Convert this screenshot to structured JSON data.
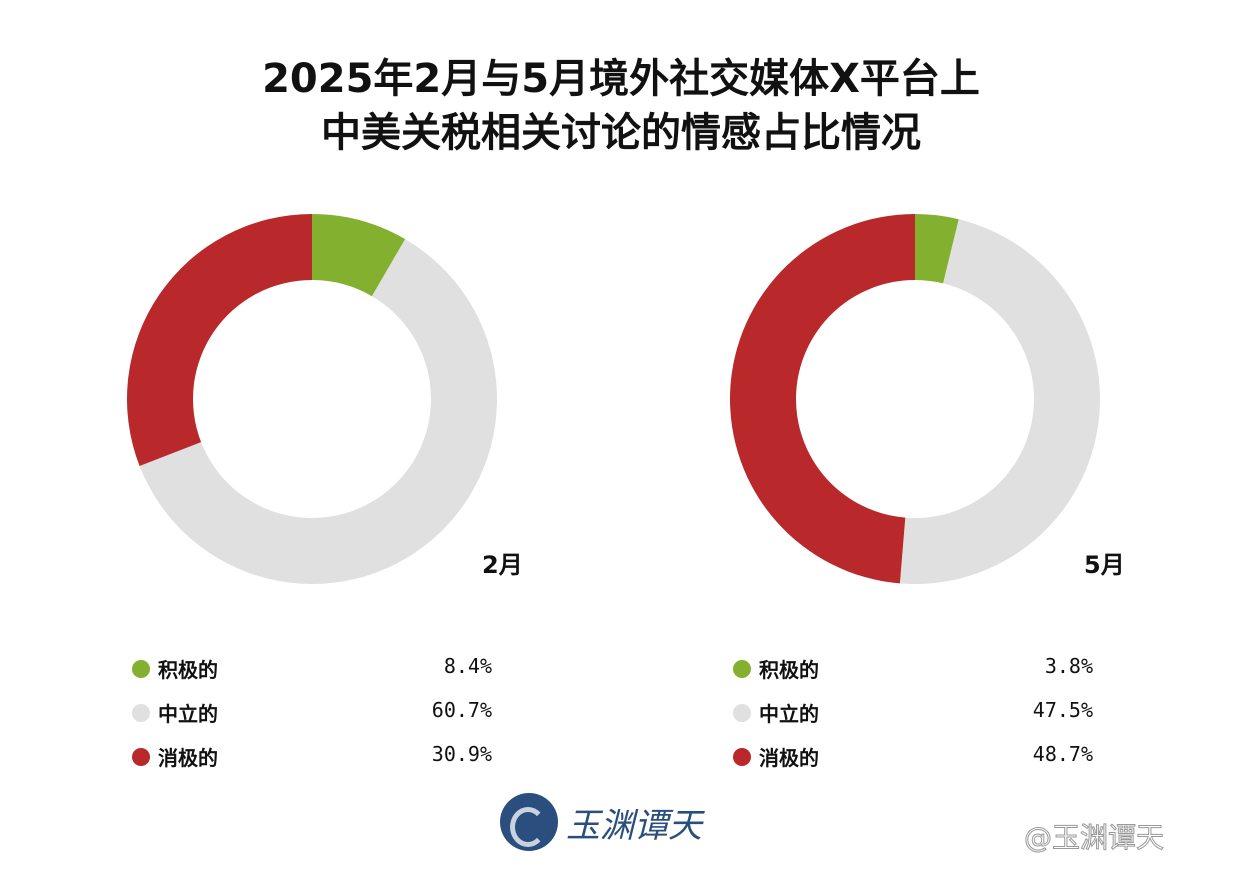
{
  "chart_data": [
    {
      "type": "pie",
      "donut": true,
      "title": "2025年2月与5月境外社交媒体X平台上中美关税相关讨论的情感占比情况",
      "label": "2月",
      "categories": [
        "积极的",
        "中立的",
        "消极的"
      ],
      "values": [
        8.4,
        60.7,
        30.9
      ],
      "value_labels": [
        "8.4%",
        "60.7%",
        "30.9%"
      ],
      "colors": [
        "#84b02f",
        "#e0e0e0",
        "#b9282b"
      ],
      "legend": "bottom"
    },
    {
      "type": "pie",
      "donut": true,
      "label": "5月",
      "categories": [
        "积极的",
        "中立的",
        "消极的"
      ],
      "values": [
        3.8,
        47.5,
        48.7
      ],
      "value_labels": [
        "3.8%",
        "47.5%",
        "48.7%"
      ],
      "colors": [
        "#84b02f",
        "#e0e0e0",
        "#b9282b"
      ],
      "legend": "bottom"
    }
  ],
  "title_lines": [
    "2025年2月与5月境外社交媒体X平台上",
    "中美关税相关讨论的情感占比情况"
  ],
  "logo": {
    "text": "玉渊谭天"
  },
  "watermark": "@玉渊谭天"
}
